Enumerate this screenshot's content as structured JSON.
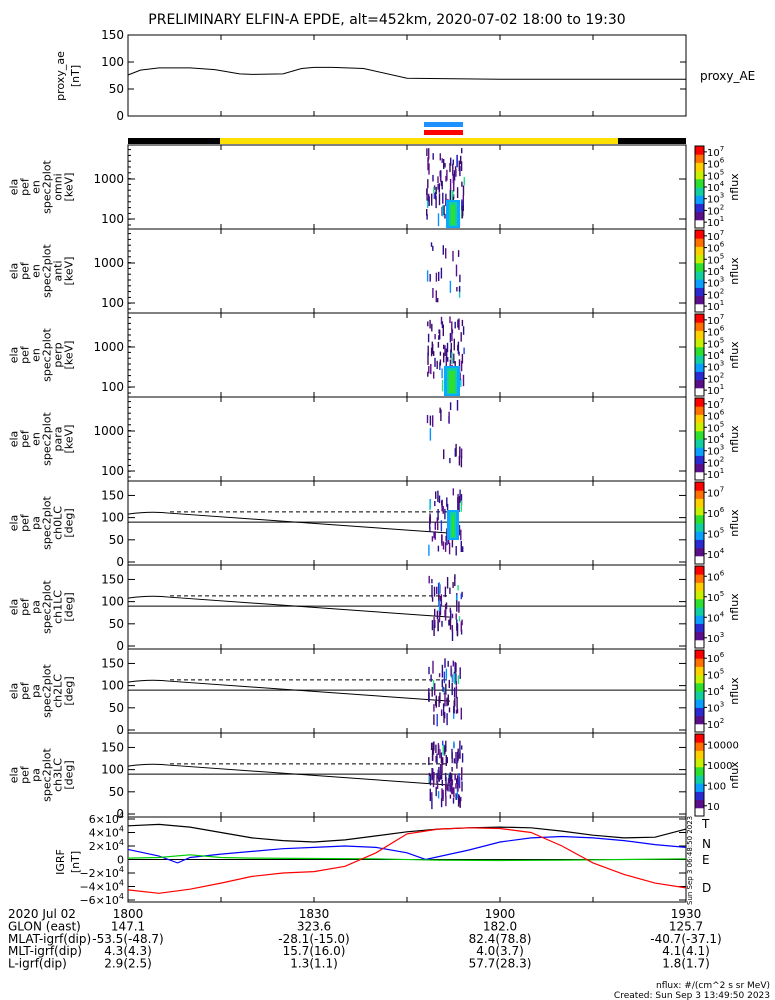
{
  "title": "PRELIMINARY ELFIN-A EPDE, alt=452km, 2020-07-02 18:00 to 19:30",
  "chart_data": [
    {
      "type": "line",
      "panel": "proxy_ae",
      "ylabel": [
        "proxy_ae",
        "[nT]"
      ],
      "legend": "proxy_AE",
      "yticks": [
        "0",
        "50",
        "100",
        "150"
      ],
      "ylim": [
        0,
        150
      ],
      "x_minutes": [
        0,
        2,
        5,
        10,
        14,
        18,
        20,
        25,
        28,
        30,
        33,
        38,
        45,
        60,
        90
      ],
      "y": [
        76,
        85,
        89,
        89,
        86,
        78,
        77,
        78,
        88,
        90,
        90,
        88,
        70,
        68,
        68
      ]
    },
    {
      "type": "heatmap",
      "panel": "spec2plot omni",
      "ylabel": [
        "ela",
        "pef",
        "en",
        "spec2plot",
        "omni",
        "[keV]"
      ],
      "yticks": [
        "100",
        "1000"
      ],
      "colorbar_label": "nflux",
      "colorbar_ticks": [
        "10^1",
        "10^2",
        "10^3",
        "10^4",
        "10^5",
        "10^6",
        "10^7"
      ]
    },
    {
      "type": "heatmap",
      "panel": "spec2plot anti",
      "ylabel": [
        "ela",
        "pef",
        "en",
        "spec2plot",
        "anti",
        "[keV]"
      ],
      "yticks": [
        "100",
        "1000"
      ],
      "colorbar_label": "nflux",
      "colorbar_ticks": [
        "10^1",
        "10^2",
        "10^3",
        "10^4",
        "10^5",
        "10^6",
        "10^7"
      ]
    },
    {
      "type": "heatmap",
      "panel": "spec2plot perp",
      "ylabel": [
        "ela",
        "pef",
        "en",
        "spec2plot",
        "perp",
        "[keV]"
      ],
      "yticks": [
        "100",
        "1000"
      ],
      "colorbar_label": "nflux",
      "colorbar_ticks": [
        "10^1",
        "10^2",
        "10^3",
        "10^4",
        "10^5",
        "10^6",
        "10^7"
      ]
    },
    {
      "type": "heatmap",
      "panel": "spec2plot para",
      "ylabel": [
        "ela",
        "pef",
        "en",
        "spec2plot",
        "para",
        "[keV]"
      ],
      "yticks": [
        "100",
        "1000"
      ],
      "colorbar_label": "nflux",
      "colorbar_ticks": [
        "10^1",
        "10^2",
        "10^3",
        "10^4",
        "10^5",
        "10^6",
        "10^7"
      ]
    },
    {
      "type": "heatmap",
      "panel": "ch0LC",
      "ylabel": [
        "ela",
        "pef",
        "pa",
        "spec2plot",
        "ch0LC",
        "[deg]"
      ],
      "yticks": [
        "0",
        "50",
        "100",
        "150"
      ],
      "colorbar_label": "nflux",
      "colorbar_ticks": [
        "10^4",
        "10^5",
        "10^6",
        "10^7"
      ]
    },
    {
      "type": "heatmap",
      "panel": "ch1LC",
      "ylabel": [
        "ela",
        "pef",
        "pa",
        "spec2plot",
        "ch1LC",
        "[deg]"
      ],
      "yticks": [
        "0",
        "50",
        "100",
        "150"
      ],
      "colorbar_label": "nflux",
      "colorbar_ticks": [
        "10^3",
        "10^4",
        "10^5",
        "10^6"
      ]
    },
    {
      "type": "heatmap",
      "panel": "ch2LC",
      "ylabel": [
        "ela",
        "pef",
        "pa",
        "spec2plot",
        "ch2LC",
        "[deg]"
      ],
      "yticks": [
        "0",
        "50",
        "100",
        "150"
      ],
      "colorbar_label": "nflux",
      "colorbar_ticks": [
        "10^2",
        "10^3",
        "10^4",
        "10^5",
        "10^6"
      ]
    },
    {
      "type": "heatmap",
      "panel": "ch3LC",
      "ylabel": [
        "ela",
        "pef",
        "pa",
        "spec2plot",
        "ch3LC",
        "[deg]"
      ],
      "yticks": [
        "0",
        "50",
        "100",
        "150"
      ],
      "colorbar_label": "nflux",
      "colorbar_ticks": [
        "10",
        "100",
        "1000",
        "10000"
      ]
    },
    {
      "type": "line",
      "panel": "IGRF",
      "ylabel": [
        "IGRF",
        "[nT]"
      ],
      "yticks": [
        "−6×10^4",
        "−4×10^4",
        "−2×10^4",
        "0",
        "2×10^4",
        "4×10^4",
        "6×10^4"
      ],
      "ylim": [
        -60000,
        60000
      ],
      "series": [
        {
          "name": "T",
          "color": "#000000",
          "x": [
            0,
            5,
            10,
            15,
            20,
            25,
            30,
            35,
            40,
            45,
            50,
            55,
            60,
            65,
            70,
            75,
            80,
            85,
            90
          ],
          "y": [
            50000,
            52000,
            48000,
            40000,
            32000,
            28000,
            26000,
            29000,
            35000,
            41000,
            45000,
            47000,
            48000,
            47000,
            42000,
            36000,
            32000,
            33000,
            45000
          ]
        },
        {
          "name": "N",
          "color": "#0000ff",
          "x": [
            0,
            5,
            8,
            10,
            15,
            20,
            25,
            30,
            35,
            40,
            45,
            48,
            55,
            60,
            65,
            70,
            75,
            80,
            85,
            90
          ],
          "y": [
            15000,
            5000,
            -5000,
            3000,
            8000,
            12000,
            16000,
            18000,
            20000,
            18000,
            10000,
            0,
            14000,
            26000,
            32000,
            34000,
            32000,
            28000,
            22000,
            18000
          ]
        },
        {
          "name": "E",
          "color": "#00cc00",
          "x": [
            0,
            5,
            10,
            15,
            20,
            30,
            40,
            50,
            60,
            70,
            80,
            90
          ],
          "y": [
            2000,
            3000,
            7000,
            3000,
            2000,
            1500,
            1000,
            -1000,
            -1500,
            -1000,
            0,
            1000
          ]
        },
        {
          "name": "D",
          "color": "#ff0000",
          "x": [
            0,
            5,
            10,
            15,
            20,
            25,
            30,
            35,
            40,
            45,
            50,
            55,
            60,
            65,
            70,
            75,
            80,
            85,
            90
          ],
          "y": [
            -45000,
            -50000,
            -44000,
            -35000,
            -25000,
            -20000,
            -18000,
            -10000,
            10000,
            38000,
            45000,
            47000,
            46000,
            40000,
            20000,
            -5000,
            -22000,
            -35000,
            -42000
          ]
        }
      ]
    }
  ],
  "legend_labels": [
    "T",
    "N",
    "E",
    "D"
  ],
  "side_note": "Sun Sep  3 06:48:50 2023",
  "footer": {
    "rows": [
      [
        "2020 Jul 02",
        "1800",
        "1830",
        "1900",
        "1930"
      ],
      [
        "GLON (east)",
        "147.1",
        "323.6",
        "182.0",
        "125.7"
      ],
      [
        "MLAT-igrf(dip)",
        "-53.5(-48.7)",
        "-28.1(-15.0)",
        "82.4(78.8)",
        "-40.7(-37.1)"
      ],
      [
        "MLT-igrf(dip)",
        "4.3(4.3)",
        "15.7(16.0)",
        "4.0(3.7)",
        "4.1(4.1)"
      ],
      [
        "L-igrf(dip)",
        "2.9(2.5)",
        "1.3(1.1)",
        "57.7(28.3)",
        "1.8(1.7)"
      ]
    ],
    "units": "nflux: #/(cm^2 s sr MeV)",
    "created": "Created: Sun Sep  3 13:49:50 2023"
  }
}
